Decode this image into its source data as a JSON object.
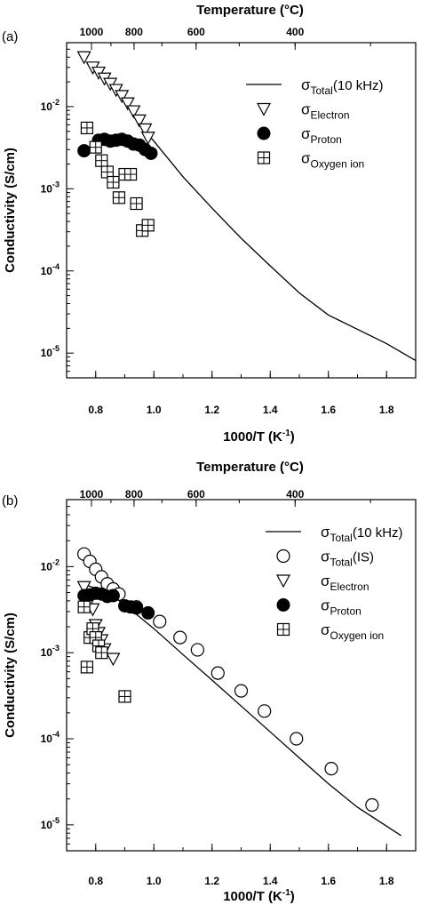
{
  "chart_data": [
    {
      "type": "scatter",
      "panel_label": "(a)",
      "xlabel_main": "1000/T (K",
      "xlabel_sup": "-1",
      "xlabel_end": ")",
      "ylabel": "Conductivity (S/cm)",
      "top_axis_label": "Temperature (°C)",
      "top_ticks": [
        {
          "label": "1000",
          "celsius": 1000
        },
        {
          "label": "800",
          "celsius": 800
        },
        {
          "label": "600",
          "celsius": 600
        },
        {
          "label": "400",
          "celsius": 400
        }
      ],
      "xlim": [
        0.7,
        1.9
      ],
      "ylim": [
        5e-06,
        0.06
      ],
      "yscale": "log",
      "x_ticks": [
        {
          "label": "0.8",
          "value": 0.8
        },
        {
          "label": "1.0",
          "value": 1.0
        },
        {
          "label": "1.2",
          "value": 1.2
        },
        {
          "label": "1.4",
          "value": 1.4
        },
        {
          "label": "1.6",
          "value": 1.6
        },
        {
          "label": "1.8",
          "value": 1.8
        }
      ],
      "y_ticks": [
        {
          "base": "10",
          "exp": "-2",
          "value": 0.01
        },
        {
          "base": "10",
          "exp": "-3",
          "value": 0.001
        },
        {
          "base": "10",
          "exp": "-4",
          "value": 0.0001
        },
        {
          "base": "10",
          "exp": "-5",
          "value": 1e-05
        }
      ],
      "legend_position": "top-right",
      "series": [
        {
          "name": "σ",
          "sub": "Total",
          "suffix": "(10 kHz)",
          "marker": "line",
          "x": [
            0.96,
            1.0,
            1.1,
            1.2,
            1.3,
            1.4,
            1.5,
            1.6,
            1.7,
            1.8,
            1.9
          ],
          "y": [
            0.0055,
            0.0038,
            0.0014,
            0.00058,
            0.00025,
            0.000115,
            5.4e-05,
            2.9e-05,
            1.95e-05,
            1.3e-05,
            8.1e-06
          ]
        },
        {
          "name": "σ",
          "sub": "Electron",
          "suffix": "",
          "marker": "triangle-down",
          "x": [
            0.76,
            0.79,
            0.81,
            0.83,
            0.85,
            0.87,
            0.89,
            0.91,
            0.93,
            0.95,
            0.97,
            0.98
          ],
          "y": [
            0.04,
            0.03,
            0.026,
            0.022,
            0.019,
            0.016,
            0.0135,
            0.011,
            0.0088,
            0.0068,
            0.0053,
            0.0042
          ]
        },
        {
          "name": "σ",
          "sub": "Proton",
          "suffix": "",
          "marker": "circle-filled",
          "x": [
            0.76,
            0.81,
            0.83,
            0.85,
            0.87,
            0.89,
            0.91,
            0.93,
            0.95,
            0.97,
            0.99
          ],
          "y": [
            0.0029,
            0.0039,
            0.004,
            0.0038,
            0.0039,
            0.004,
            0.0038,
            0.0035,
            0.0034,
            0.003,
            0.0027
          ]
        },
        {
          "name": "σ",
          "sub": "Oxygen ion",
          "suffix": "",
          "marker": "square-cross",
          "x": [
            0.77,
            0.8,
            0.82,
            0.84,
            0.86,
            0.88,
            0.9,
            0.92,
            0.94,
            0.96,
            0.98
          ],
          "y": [
            0.0055,
            0.0032,
            0.0022,
            0.0016,
            0.0012,
            0.00078,
            0.0015,
            0.0015,
            0.00066,
            0.00031,
            0.00036
          ]
        }
      ]
    },
    {
      "type": "scatter",
      "panel_label": "(b)",
      "xlabel_main": "1000/T (K",
      "xlabel_sup": "-1",
      "xlabel_end": ")",
      "ylabel": "Conductivity (S/cm)",
      "top_axis_label": "Temperature (°C)",
      "top_ticks": [
        {
          "label": "1000",
          "celsius": 1000
        },
        {
          "label": "800",
          "celsius": 800
        },
        {
          "label": "600",
          "celsius": 600
        },
        {
          "label": "400",
          "celsius": 400
        }
      ],
      "xlim": [
        0.7,
        1.9
      ],
      "ylim": [
        5e-06,
        0.06
      ],
      "yscale": "log",
      "x_ticks": [
        {
          "label": "0.8",
          "value": 0.8
        },
        {
          "label": "1.0",
          "value": 1.0
        },
        {
          "label": "1.2",
          "value": 1.2
        },
        {
          "label": "1.4",
          "value": 1.4
        },
        {
          "label": "1.6",
          "value": 1.6
        },
        {
          "label": "1.8",
          "value": 1.8
        }
      ],
      "y_ticks": [
        {
          "base": "10",
          "exp": "-2",
          "value": 0.01
        },
        {
          "base": "10",
          "exp": "-3",
          "value": 0.001
        },
        {
          "base": "10",
          "exp": "-4",
          "value": 0.0001
        },
        {
          "base": "10",
          "exp": "-5",
          "value": 1e-05
        }
      ],
      "legend_position": "top-right",
      "series": [
        {
          "name": "σ",
          "sub": "Total",
          "suffix": "(10 kHz)",
          "marker": "line",
          "x": [
            0.76,
            0.8,
            0.85,
            0.9,
            1.0,
            1.1,
            1.2,
            1.3,
            1.4,
            1.5,
            1.6,
            1.7,
            1.85
          ],
          "y": [
            0.0062,
            0.0056,
            0.0048,
            0.0036,
            0.0019,
            0.00095,
            0.00048,
            0.00024,
            0.00012,
            6e-05,
            3e-05,
            1.6e-05,
            7.5e-06
          ]
        },
        {
          "name": "σ",
          "sub": "Total",
          "suffix": "(IS)",
          "marker": "circle-open",
          "x": [
            0.76,
            0.78,
            0.8,
            0.82,
            0.84,
            0.86,
            0.88,
            0.94,
            1.02,
            1.09,
            1.15,
            1.22,
            1.3,
            1.38,
            1.49,
            1.61,
            1.75
          ],
          "y": [
            0.014,
            0.0115,
            0.0093,
            0.0076,
            0.0063,
            0.0055,
            0.0048,
            0.0034,
            0.0023,
            0.0015,
            0.00108,
            0.00058,
            0.00036,
            0.00021,
            0.0001,
            4.5e-05,
            1.7e-05
          ]
        },
        {
          "name": "σ",
          "sub": "Electron",
          "suffix": "",
          "marker": "triangle-down",
          "x": [
            0.76,
            0.78,
            0.79,
            0.8,
            0.81,
            0.82,
            0.83,
            0.86
          ],
          "y": [
            0.0058,
            0.0041,
            0.0032,
            0.0021,
            0.0017,
            0.0014,
            0.0011,
            0.00085
          ]
        },
        {
          "name": "σ",
          "sub": "Proton",
          "suffix": "",
          "marker": "circle-filled",
          "x": [
            0.76,
            0.78,
            0.8,
            0.82,
            0.84,
            0.86,
            0.9,
            0.92,
            0.94,
            0.98
          ],
          "y": [
            0.0046,
            0.0047,
            0.0049,
            0.0048,
            0.0045,
            0.0046,
            0.0035,
            0.0034,
            0.0033,
            0.0029
          ]
        },
        {
          "name": "σ",
          "sub": "Oxygen ion",
          "suffix": "",
          "marker": "square-cross",
          "x": [
            0.76,
            0.77,
            0.78,
            0.79,
            0.8,
            0.81,
            0.82,
            0.9
          ],
          "y": [
            0.0034,
            0.00068,
            0.0015,
            0.0019,
            0.0015,
            0.0012,
            0.001,
            0.00031
          ]
        }
      ]
    }
  ]
}
